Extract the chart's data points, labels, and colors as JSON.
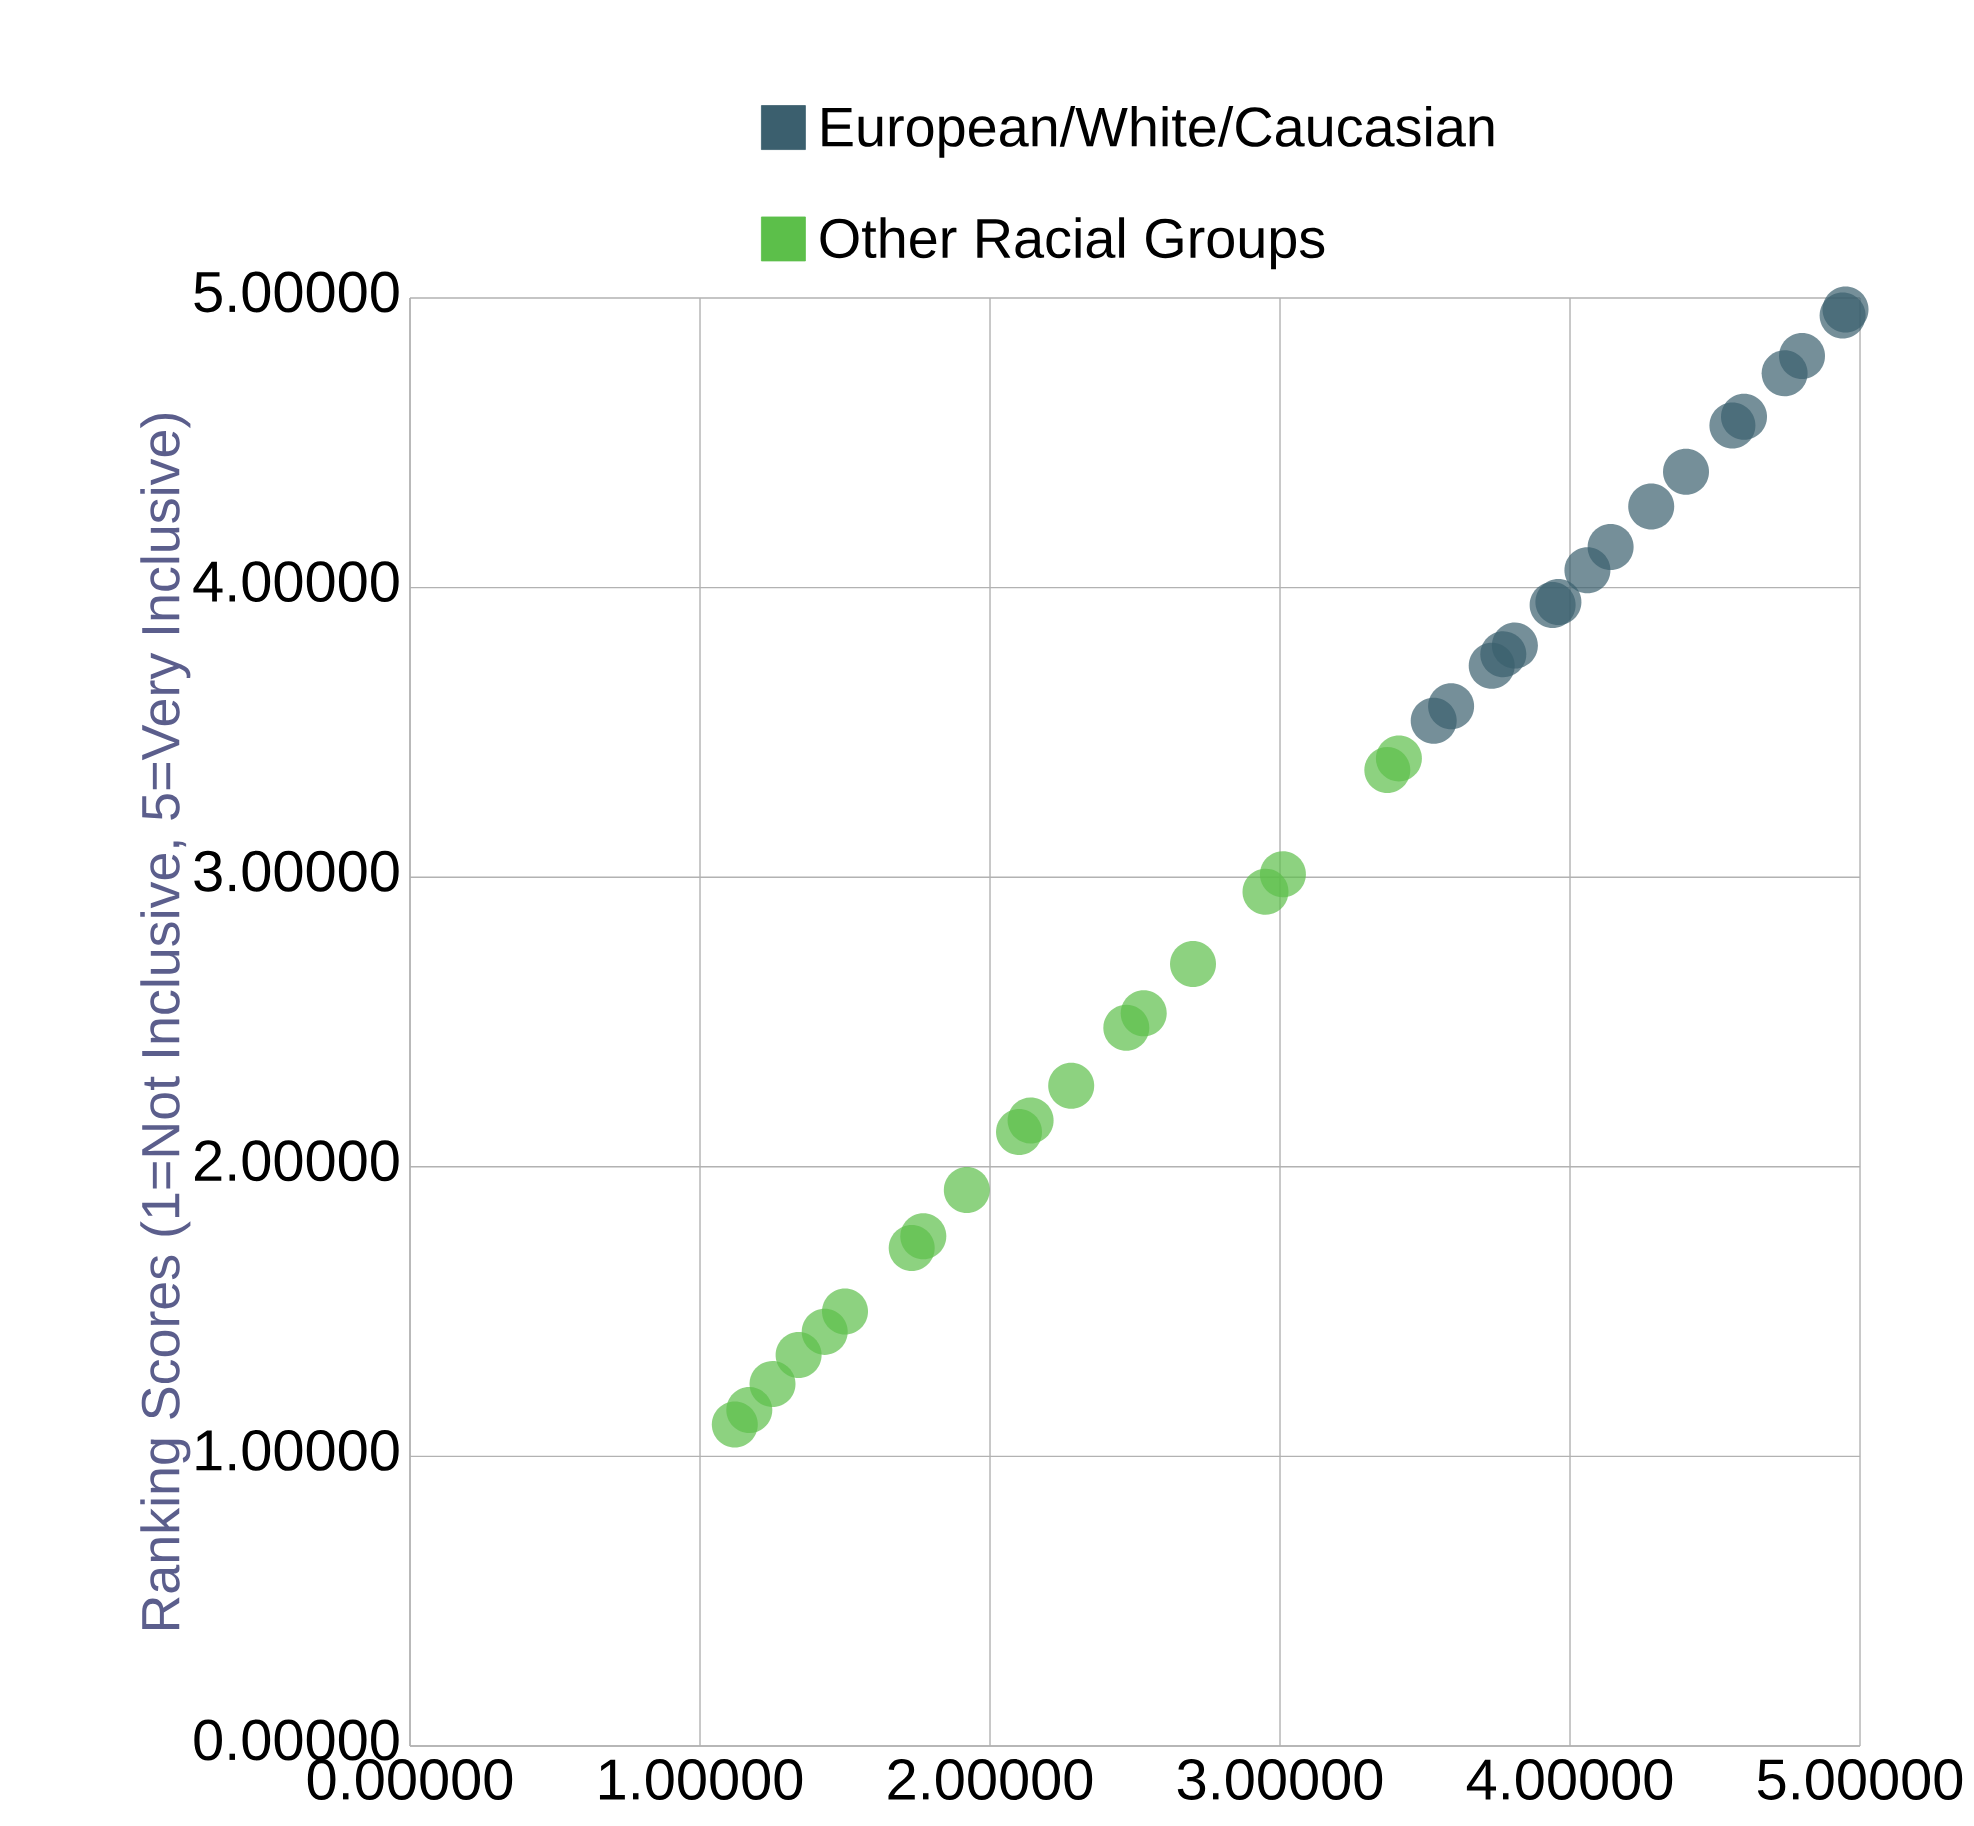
{
  "chart_data": {
    "type": "scatter",
    "ylabel": "Ranking Scores (1=Not Inclusive, 5=Very Inclusive)",
    "xlim": [
      0,
      5
    ],
    "ylim": [
      0,
      5
    ],
    "xticks": [
      {
        "value": 0,
        "label": "0.00000"
      },
      {
        "value": 1,
        "label": "1.00000"
      },
      {
        "value": 2,
        "label": "2.00000"
      },
      {
        "value": 3,
        "label": "3.00000"
      },
      {
        "value": 4,
        "label": "4.00000"
      },
      {
        "value": 5,
        "label": "5.00000"
      }
    ],
    "yticks": [
      {
        "value": 0,
        "label": "0.00000"
      },
      {
        "value": 1,
        "label": "1.00000"
      },
      {
        "value": 2,
        "label": "2.00000"
      },
      {
        "value": 3,
        "label": "3.00000"
      },
      {
        "value": 4,
        "label": "4.00000"
      },
      {
        "value": 5,
        "label": "5.00000"
      }
    ],
    "grid": true,
    "legend": "top",
    "marker": "circle",
    "series": [
      {
        "name": "European/White/Caucasian",
        "color": "#3b5f6e",
        "x": [
          3.53,
          3.59,
          3.73,
          3.77,
          3.81,
          3.94,
          3.96,
          4.06,
          4.14,
          4.28,
          4.4,
          4.56,
          4.6,
          4.74,
          4.8,
          4.94,
          4.95
        ],
        "values": [
          3.54,
          3.59,
          3.73,
          3.77,
          3.8,
          3.94,
          3.95,
          4.06,
          4.14,
          4.28,
          4.4,
          4.56,
          4.59,
          4.74,
          4.8,
          4.94,
          4.96
        ]
      },
      {
        "name": "Other Racial Groups",
        "color": "#5cbf4a",
        "x": [
          1.12,
          1.17,
          1.25,
          1.34,
          1.43,
          1.5,
          1.73,
          1.77,
          1.92,
          2.1,
          2.14,
          2.28,
          2.47,
          2.53,
          2.7,
          2.95,
          3.01,
          3.37,
          3.41
        ],
        "values": [
          1.11,
          1.16,
          1.25,
          1.35,
          1.43,
          1.5,
          1.72,
          1.76,
          1.92,
          2.12,
          2.16,
          2.28,
          2.48,
          2.53,
          2.7,
          2.95,
          3.01,
          3.37,
          3.41
        ]
      }
    ]
  }
}
